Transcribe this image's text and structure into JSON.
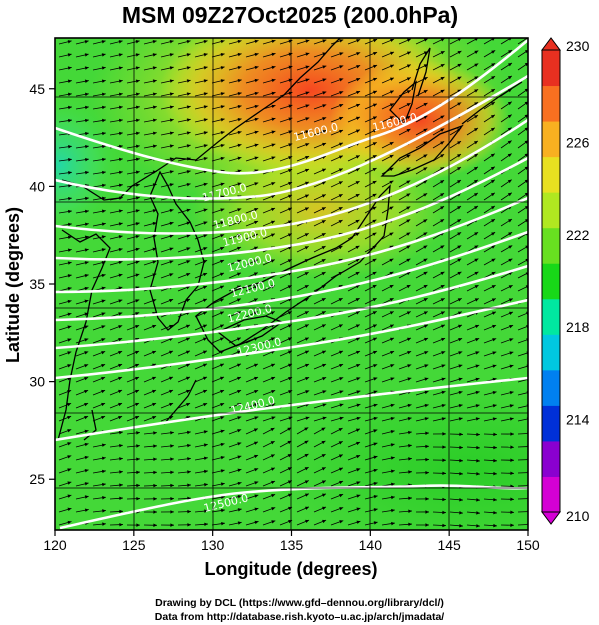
{
  "title": "MSM 09Z27Oct2025 (200.0hPa)",
  "map": {
    "x_axis_label": "Longitude (degrees)",
    "y_axis_label": "Latitude  (degrees)",
    "lon_range": [
      120,
      150
    ],
    "lat_range": [
      22.4,
      47.6
    ],
    "lon_ticks": [
      "120",
      "125",
      "130",
      "135",
      "140",
      "145",
      "150"
    ],
    "lat_ticks": [
      "25",
      "30",
      "35",
      "40",
      "45"
    ],
    "shading": "temperature-like scalar field, rainbow colormap",
    "vectors": "wind arrows, mostly westerly",
    "contour_color": "#ffffff"
  },
  "contour_labels": [
    {
      "text": "11600.0",
      "lon": 136.6,
      "lat": 42.6
    },
    {
      "text": "11600.0",
      "lon": 141.6,
      "lat": 43.1
    },
    {
      "text": "11700.0",
      "lon": 130.8,
      "lat": 39.5
    },
    {
      "text": "11800.0",
      "lon": 131.5,
      "lat": 38.1
    },
    {
      "text": "11900.0",
      "lon": 132.1,
      "lat": 37.2
    },
    {
      "text": "12000.0",
      "lon": 132.4,
      "lat": 35.9
    },
    {
      "text": "12100.0",
      "lon": 132.6,
      "lat": 34.6
    },
    {
      "text": "12200.0",
      "lon": 132.4,
      "lat": 33.3
    },
    {
      "text": "12300.0",
      "lon": 133.0,
      "lat": 31.6
    },
    {
      "text": "12400.0",
      "lon": 132.6,
      "lat": 28.6
    },
    {
      "text": "12500.0",
      "lon": 130.9,
      "lat": 23.6
    }
  ],
  "colorbar": {
    "ticks": [
      "230",
      "226",
      "222",
      "218",
      "214",
      "210"
    ],
    "min": 210,
    "max": 230,
    "colors": [
      "#d400d4",
      "#8a00d0",
      "#0030d8",
      "#0080f0",
      "#00c8e0",
      "#00e8a0",
      "#18d818",
      "#68e020",
      "#b0e820",
      "#e8e020",
      "#f8b020",
      "#f87020",
      "#e83020"
    ]
  }
}
